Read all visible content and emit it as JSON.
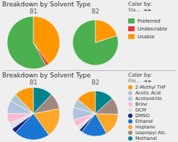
{
  "chart_data": [
    {
      "type": "pie",
      "title": "Breakdown by Solvent Type",
      "annotations": [
        "Color by:",
        "Sta...  ◄ ►"
      ],
      "categories": [
        "Preferred",
        "Undesirable",
        "Usable"
      ],
      "colors": [
        "#4caf50",
        "#e53935",
        "#ff9800"
      ],
      "marker": "square",
      "series": [
        {
          "name": "B1",
          "values": [
            58,
            2,
            40
          ]
        },
        {
          "name": "B2",
          "values": [
            80,
            null,
            20
          ]
        }
      ]
    },
    {
      "type": "pie",
      "title": "Breakdown by Solvent Type",
      "annotations": [
        "Color by:",
        "File...  ◄ ►"
      ],
      "categories": [
        "2-Methyl THF",
        "Acetic Acid",
        "Acetonitrile",
        "Brine",
        "DCM",
        "DMSO",
        "Ethanol",
        "Heptane",
        "Isopropyl Alc.",
        "Methanol"
      ],
      "colors": [
        "#ff9800",
        "#aec6cf",
        "#b0c4de",
        "#f8bbd0",
        "#e0e0e0",
        "#1a237e",
        "#1976d2",
        "#ffa726",
        "#a1887f",
        "#00838f"
      ],
      "marker": "circle",
      "series": [
        {
          "name": "B1",
          "values": [
            12,
            5,
            8,
            6,
            4,
            3,
            22,
            18,
            10,
            12
          ]
        },
        {
          "name": "B2",
          "values": [
            14,
            6,
            9,
            5,
            3,
            2,
            18,
            16,
            12,
            13
          ]
        }
      ]
    }
  ]
}
